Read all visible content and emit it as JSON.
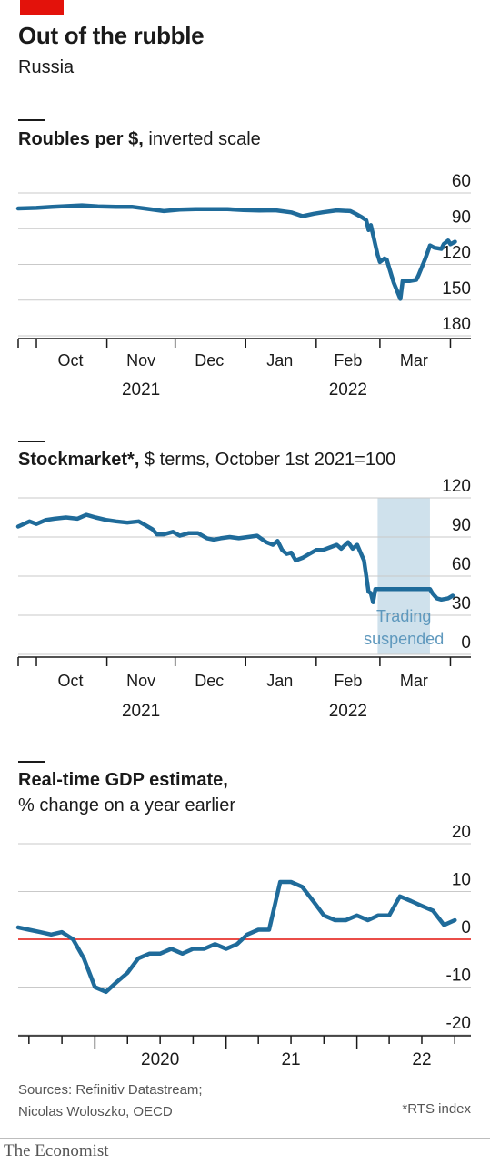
{
  "header": {
    "title": "Out of the rubble",
    "subtitle": "Russia"
  },
  "panels": {
    "roubles": {
      "title_bold": "Roubles per $,",
      "title_rest": " inverted scale"
    },
    "stocks": {
      "title_bold": "Stockmarket*,",
      "title_rest": " $ terms, October 1st 2021=100",
      "shade_label_1": "Trading",
      "shade_label_2": "suspended"
    },
    "gdp": {
      "title_bold": "Real-time GDP estimate,",
      "title_rest": "% change on a year earlier"
    }
  },
  "footer": {
    "sources_1": "Sources: Refinitiv Datastream;",
    "sources_2": "Nicolas Woloszko, OECD",
    "footnote": "*RTS index",
    "logo": "The Economist"
  },
  "colors": {
    "line": "#1f6b9a",
    "grid": "#c9c9c9",
    "zero_line": "#e3120b",
    "shade": "#cfe1ec",
    "shade_text": "#5e98bd"
  },
  "chart_data": [
    {
      "type": "line",
      "series": [
        {
          "values": [
            {
              "x": "2021-09-23",
              "y": 73
            },
            {
              "x": "2021-10-01",
              "y": 72.5
            },
            {
              "x": "2021-10-08",
              "y": 71.6
            },
            {
              "x": "2021-10-15",
              "y": 71.0
            },
            {
              "x": "2021-10-21",
              "y": 70.4
            },
            {
              "x": "2021-10-28",
              "y": 71.3
            },
            {
              "x": "2021-11-05",
              "y": 71.7
            },
            {
              "x": "2021-11-12",
              "y": 71.6
            },
            {
              "x": "2021-11-19",
              "y": 73.4
            },
            {
              "x": "2021-11-26",
              "y": 75.2
            },
            {
              "x": "2021-12-03",
              "y": 73.9
            },
            {
              "x": "2021-12-10",
              "y": 73.5
            },
            {
              "x": "2021-12-17",
              "y": 73.5
            },
            {
              "x": "2021-12-24",
              "y": 73.6
            },
            {
              "x": "2021-12-31",
              "y": 74.3
            },
            {
              "x": "2022-01-07",
              "y": 74.7
            },
            {
              "x": "2022-01-14",
              "y": 74.5
            },
            {
              "x": "2022-01-21",
              "y": 76.3
            },
            {
              "x": "2022-01-26",
              "y": 79.5
            },
            {
              "x": "2022-01-31",
              "y": 77.4
            },
            {
              "x": "2022-02-04",
              "y": 76.2
            },
            {
              "x": "2022-02-10",
              "y": 74.6
            },
            {
              "x": "2022-02-16",
              "y": 75.2
            },
            {
              "x": "2022-02-18",
              "y": 77.1
            },
            {
              "x": "2022-02-21",
              "y": 80.3
            },
            {
              "x": "2022-02-23",
              "y": 82.9
            },
            {
              "x": "2022-02-24",
              "y": 91.2
            },
            {
              "x": "2022-02-25",
              "y": 87.0
            },
            {
              "x": "2022-02-28",
              "y": 112
            },
            {
              "x": "2022-03-01",
              "y": 118
            },
            {
              "x": "2022-03-03",
              "y": 115
            },
            {
              "x": "2022-03-04",
              "y": 116
            },
            {
              "x": "2022-03-07",
              "y": 135
            },
            {
              "x": "2022-03-10",
              "y": 149
            },
            {
              "x": "2022-03-11",
              "y": 134
            },
            {
              "x": "2022-03-14",
              "y": 134
            },
            {
              "x": "2022-03-17",
              "y": 133
            },
            {
              "x": "2022-03-18",
              "y": 129
            },
            {
              "x": "2022-03-21",
              "y": 115
            },
            {
              "x": "2022-03-23",
              "y": 104
            },
            {
              "x": "2022-03-25",
              "y": 106
            },
            {
              "x": "2022-03-28",
              "y": 107
            },
            {
              "x": "2022-03-29",
              "y": 103
            },
            {
              "x": "2022-03-31",
              "y": 100
            },
            {
              "x": "2022-04-01",
              "y": 103
            },
            {
              "x": "2022-04-03",
              "y": 101
            }
          ]
        }
      ],
      "y_tick_labels": [
        "60",
        "90",
        "120",
        "150",
        "180"
      ],
      "ylim": [
        60,
        180
      ],
      "y_inverted": true,
      "x_tick_labels": [
        "Oct",
        "Nov",
        "Dec",
        "Jan",
        "Feb",
        "Mar"
      ],
      "x_year_labels": [
        "2021",
        "2022"
      ],
      "grid": true
    },
    {
      "type": "line",
      "series": [
        {
          "values": [
            {
              "x": "2021-09-23",
              "y": 98
            },
            {
              "x": "2021-09-28",
              "y": 102
            },
            {
              "x": "2021-10-01",
              "y": 100
            },
            {
              "x": "2021-10-05",
              "y": 103
            },
            {
              "x": "2021-10-09",
              "y": 104
            },
            {
              "x": "2021-10-14",
              "y": 105
            },
            {
              "x": "2021-10-19",
              "y": 104
            },
            {
              "x": "2021-10-23",
              "y": 107
            },
            {
              "x": "2021-10-27",
              "y": 105
            },
            {
              "x": "2021-11-01",
              "y": 103
            },
            {
              "x": "2021-11-05",
              "y": 102
            },
            {
              "x": "2021-11-10",
              "y": 101
            },
            {
              "x": "2021-11-15",
              "y": 102
            },
            {
              "x": "2021-11-18",
              "y": 99
            },
            {
              "x": "2021-11-21",
              "y": 96
            },
            {
              "x": "2021-11-23",
              "y": 92
            },
            {
              "x": "2021-11-26",
              "y": 92
            },
            {
              "x": "2021-11-30",
              "y": 94
            },
            {
              "x": "2021-12-03",
              "y": 91
            },
            {
              "x": "2021-12-07",
              "y": 93
            },
            {
              "x": "2021-12-11",
              "y": 93
            },
            {
              "x": "2021-12-15",
              "y": 89
            },
            {
              "x": "2021-12-18",
              "y": 88
            },
            {
              "x": "2021-12-21",
              "y": 89
            },
            {
              "x": "2021-12-25",
              "y": 90
            },
            {
              "x": "2021-12-29",
              "y": 89
            },
            {
              "x": "2022-01-02",
              "y": 90
            },
            {
              "x": "2022-01-06",
              "y": 91
            },
            {
              "x": "2022-01-10",
              "y": 86
            },
            {
              "x": "2022-01-13",
              "y": 84
            },
            {
              "x": "2022-01-15",
              "y": 87
            },
            {
              "x": "2022-01-17",
              "y": 80
            },
            {
              "x": "2022-01-19",
              "y": 77
            },
            {
              "x": "2022-01-21",
              "y": 78
            },
            {
              "x": "2022-01-23",
              "y": 72
            },
            {
              "x": "2022-01-26",
              "y": 74
            },
            {
              "x": "2022-01-29",
              "y": 77
            },
            {
              "x": "2022-02-01",
              "y": 80
            },
            {
              "x": "2022-02-04",
              "y": 80
            },
            {
              "x": "2022-02-07",
              "y": 82
            },
            {
              "x": "2022-02-10",
              "y": 84
            },
            {
              "x": "2022-02-12",
              "y": 81
            },
            {
              "x": "2022-02-15",
              "y": 86
            },
            {
              "x": "2022-02-17",
              "y": 81
            },
            {
              "x": "2022-02-19",
              "y": 84
            },
            {
              "x": "2022-02-21",
              "y": 76
            },
            {
              "x": "2022-02-22",
              "y": 72
            },
            {
              "x": "2022-02-24",
              "y": 48
            },
            {
              "x": "2022-02-25",
              "y": 47
            },
            {
              "x": "2022-02-26",
              "y": 40
            },
            {
              "x": "2022-02-27",
              "y": 50
            },
            {
              "x": "2022-03-03",
              "y": 50
            },
            {
              "x": "2022-03-10",
              "y": 50
            },
            {
              "x": "2022-03-17",
              "y": 50
            },
            {
              "x": "2022-03-23",
              "y": 50
            },
            {
              "x": "2022-03-24",
              "y": 47
            },
            {
              "x": "2022-03-26",
              "y": 43
            },
            {
              "x": "2022-03-28",
              "y": 42
            },
            {
              "x": "2022-03-31",
              "y": 43
            },
            {
              "x": "2022-04-02",
              "y": 45
            }
          ]
        }
      ],
      "shaded_range": {
        "from": "2022-02-28",
        "to": "2022-03-23"
      },
      "y_tick_labels": [
        "120",
        "90",
        "60",
        "30",
        "0"
      ],
      "ylim": [
        0,
        120
      ],
      "x_tick_labels": [
        "Oct",
        "Nov",
        "Dec",
        "Jan",
        "Feb",
        "Mar"
      ],
      "x_year_labels": [
        "2021",
        "2022"
      ],
      "grid": true
    },
    {
      "type": "line",
      "series": [
        {
          "values": [
            {
              "x": "2019-06-01",
              "y": 2.5
            },
            {
              "x": "2019-07-01",
              "y": 2
            },
            {
              "x": "2019-08-01",
              "y": 1.5
            },
            {
              "x": "2019-09-01",
              "y": 1
            },
            {
              "x": "2019-10-01",
              "y": 1.5
            },
            {
              "x": "2019-11-01",
              "y": 0
            },
            {
              "x": "2019-12-01",
              "y": -4
            },
            {
              "x": "2020-01-01",
              "y": -10
            },
            {
              "x": "2020-02-01",
              "y": -11
            },
            {
              "x": "2020-03-01",
              "y": -9
            },
            {
              "x": "2020-04-01",
              "y": -7
            },
            {
              "x": "2020-05-01",
              "y": -4
            },
            {
              "x": "2020-06-01",
              "y": -3
            },
            {
              "x": "2020-07-01",
              "y": -3
            },
            {
              "x": "2020-08-01",
              "y": -2
            },
            {
              "x": "2020-09-01",
              "y": -3
            },
            {
              "x": "2020-10-01",
              "y": -2
            },
            {
              "x": "2020-11-01",
              "y": -2
            },
            {
              "x": "2020-12-01",
              "y": -1
            },
            {
              "x": "2021-01-01",
              "y": -2
            },
            {
              "x": "2021-02-01",
              "y": -1
            },
            {
              "x": "2021-03-01",
              "y": 1
            },
            {
              "x": "2021-04-01",
              "y": 2
            },
            {
              "x": "2021-05-01",
              "y": 2
            },
            {
              "x": "2021-06-01",
              "y": 12
            },
            {
              "x": "2021-07-01",
              "y": 12
            },
            {
              "x": "2021-08-01",
              "y": 11
            },
            {
              "x": "2021-09-01",
              "y": 8
            },
            {
              "x": "2021-10-01",
              "y": 5
            },
            {
              "x": "2021-11-01",
              "y": 4
            },
            {
              "x": "2021-12-01",
              "y": 4
            },
            {
              "x": "2022-01-01",
              "y": 5
            },
            {
              "x": "2022-02-01",
              "y": 4
            },
            {
              "x": "2022-03-01",
              "y": 5
            },
            {
              "x": "2022-04-01",
              "y": 5
            },
            {
              "x": "2022-05-01",
              "y": 9
            },
            {
              "x": "2022-06-01",
              "y": 8
            },
            {
              "x": "2022-07-01",
              "y": 7
            },
            {
              "x": "2022-08-01",
              "y": 6
            },
            {
              "x": "2022-09-01",
              "y": 3
            },
            {
              "x": "2022-10-01",
              "y": 4
            }
          ]
        }
      ],
      "y_tick_labels": [
        "20",
        "10",
        "0",
        "-10",
        "-20"
      ],
      "ylim": [
        -20,
        20
      ],
      "x_tick_labels": [
        "2020",
        "21",
        "22"
      ],
      "grid": true
    }
  ]
}
